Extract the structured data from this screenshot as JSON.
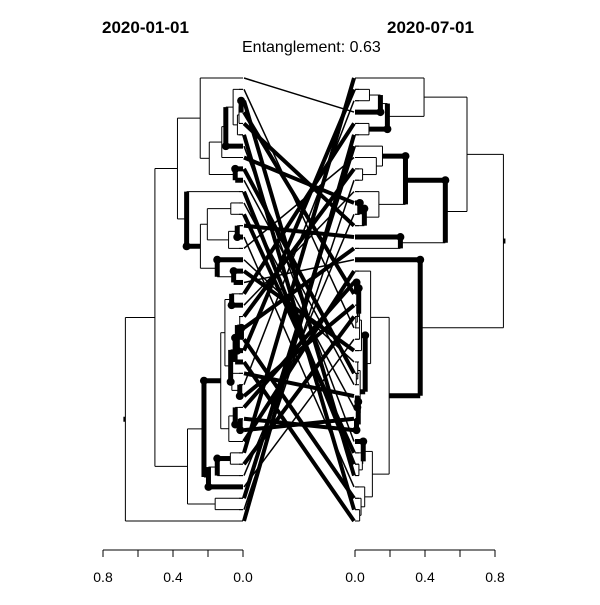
{
  "chart_data": {
    "type": "tanglegram",
    "title_left": "2020-01-01",
    "title_right": "2020-07-01",
    "subtitle_label": "Entanglement:",
    "entanglement": 0.63,
    "subtitle": "Entanglement: 0.63",
    "left_axis": {
      "ticks": [
        0.8,
        0.4,
        0.0
      ],
      "tick_labels": [
        "0.8",
        "0.4",
        "0.0"
      ],
      "range": [
        1.0,
        0.0
      ]
    },
    "right_axis": {
      "ticks": [
        0.0,
        0.4,
        0.8
      ],
      "tick_labels": [
        "0.0",
        "0.4",
        "0.8"
      ],
      "range": [
        0.0,
        1.0
      ]
    },
    "leaf_count": 40
  }
}
